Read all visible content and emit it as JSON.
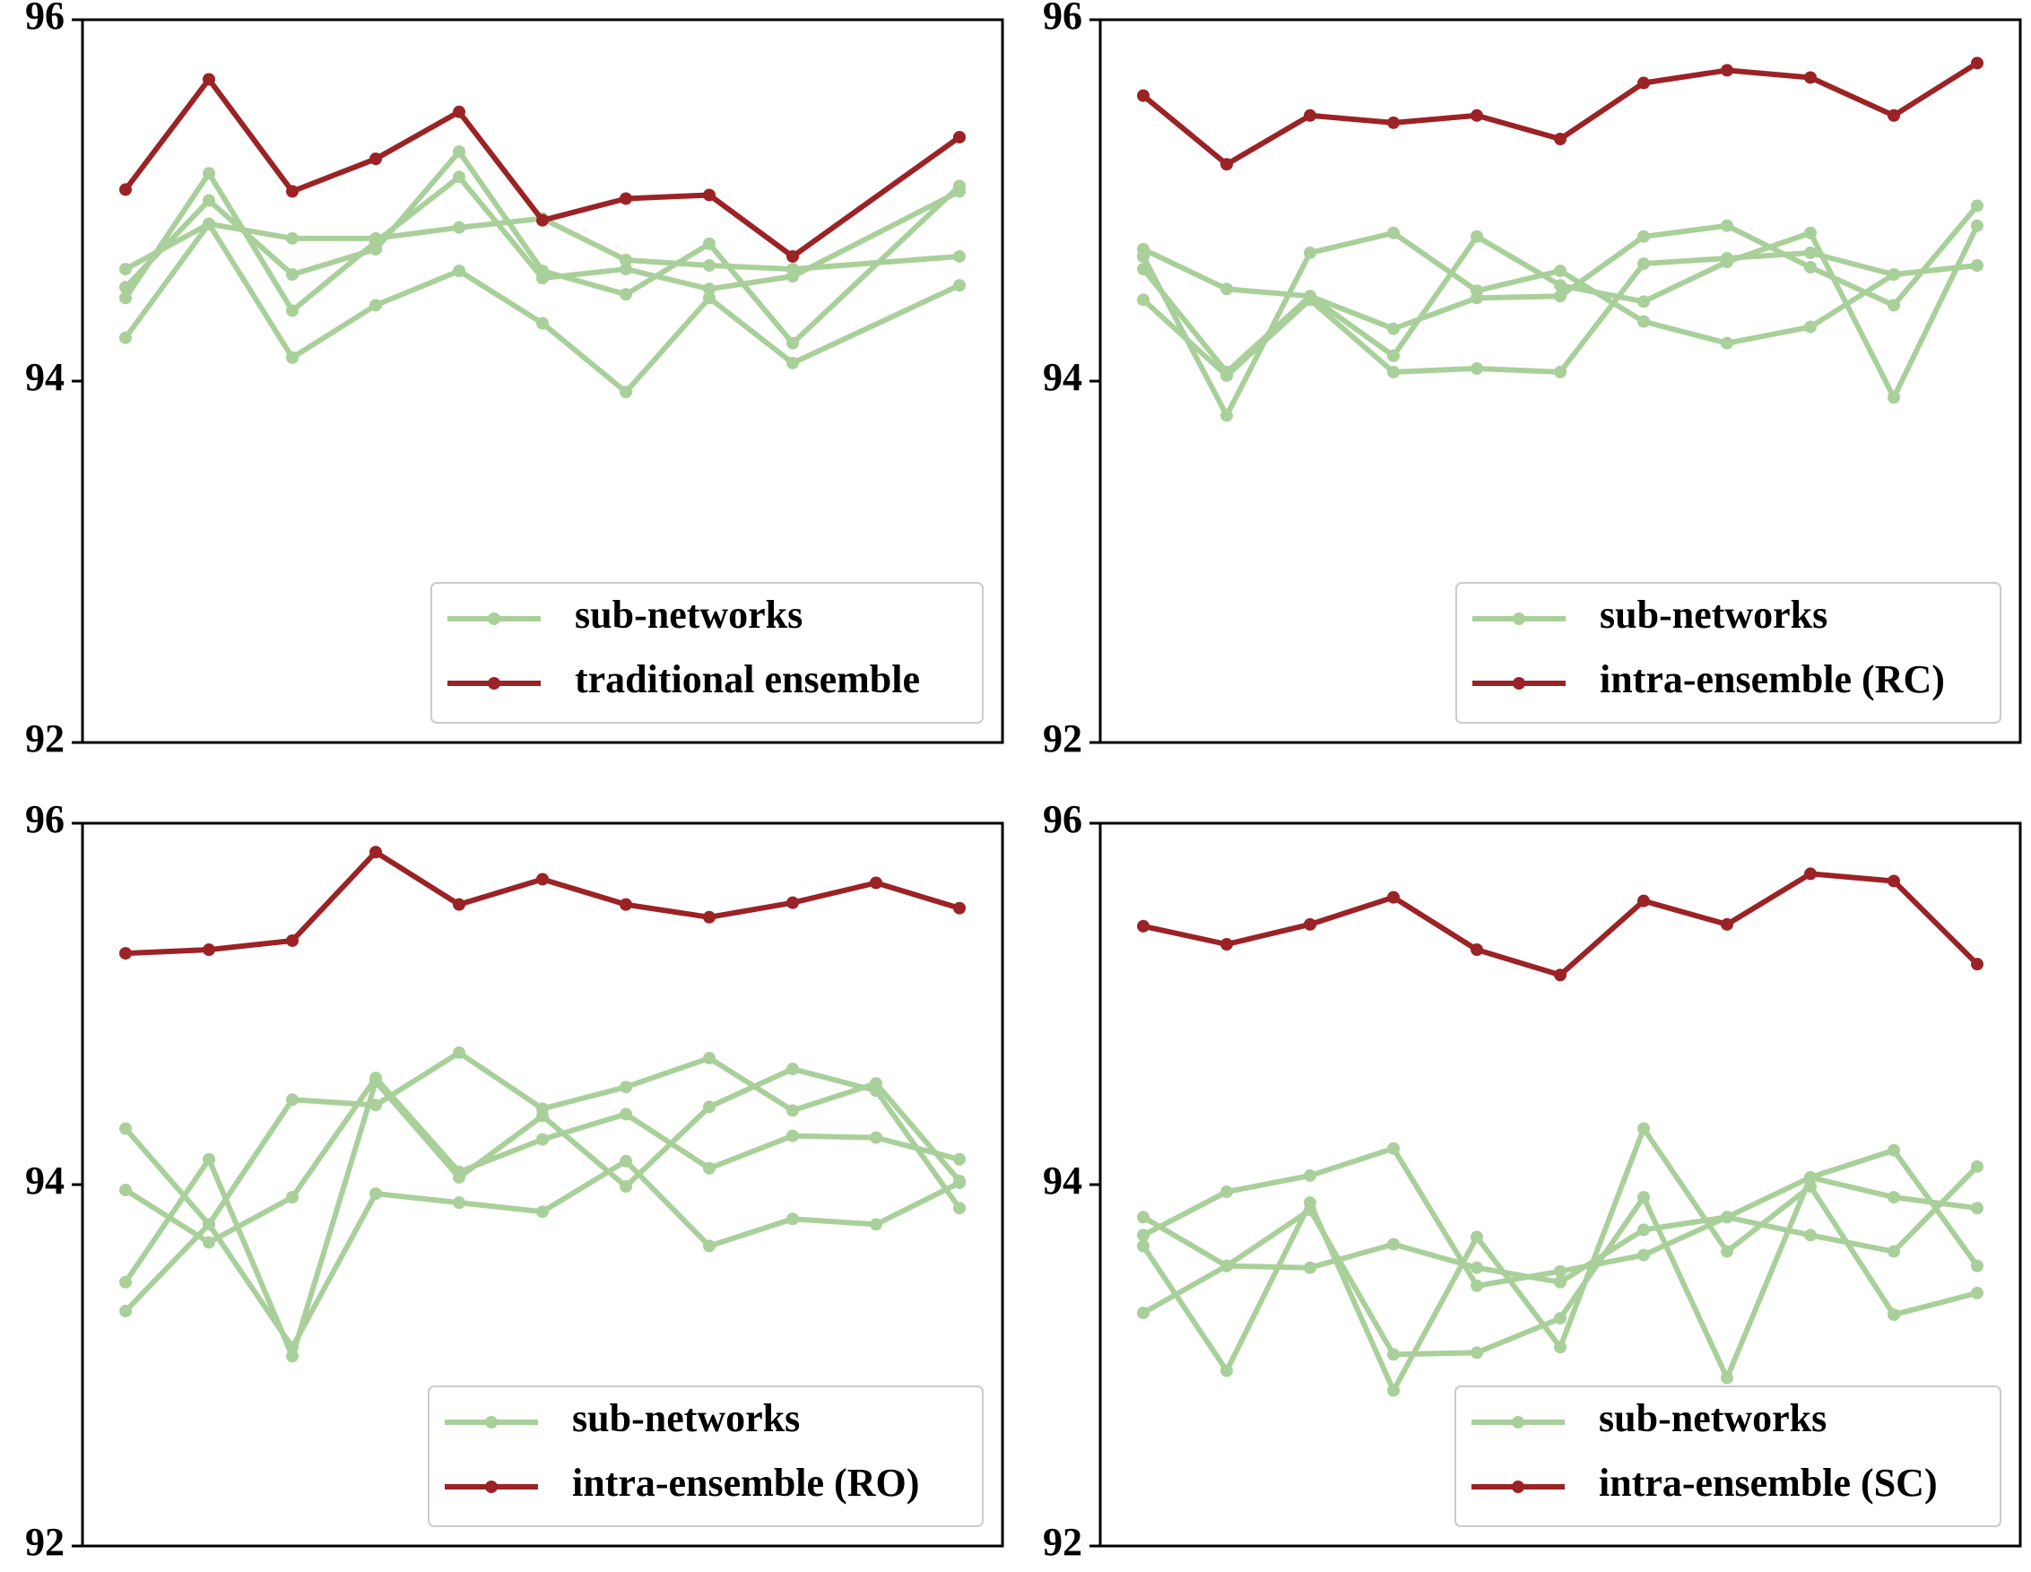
{
  "figure": {
    "colors": {
      "sub": "#a9d09a",
      "ensemble": "#9b2225",
      "axis": "#000000",
      "legend_border": "#cccccc"
    }
  },
  "chart_data": [
    {
      "type": "line",
      "ylim": [
        92,
        96
      ],
      "yticks": [
        92,
        94,
        96
      ],
      "grid": false,
      "legend_placement": "lower-right",
      "x": [
        1,
        2,
        3,
        4,
        5,
        6,
        7,
        8,
        9,
        10,
        11
      ],
      "series": [
        {
          "name": "sub-networks",
          "role": "sub",
          "values": [
            94.62,
            94.87,
            94.79,
            94.79,
            94.85,
            94.9,
            94.67,
            94.64,
            94.62,
            94.69
          ],
          "x": [
            1,
            2,
            3,
            4,
            5,
            6,
            7,
            8,
            9,
            11
          ]
        },
        {
          "role": "sub",
          "values": [
            94.52,
            95.0,
            94.59,
            94.73,
            95.27,
            94.61,
            94.48,
            94.76,
            94.21,
            95.08
          ],
          "x": [
            1,
            2,
            3,
            4,
            5,
            6,
            7,
            8,
            9,
            11
          ]
        },
        {
          "role": "sub",
          "values": [
            94.46,
            95.15,
            94.39,
            94.77,
            95.13,
            94.57,
            94.62,
            94.51,
            94.58,
            95.05
          ],
          "x": [
            1,
            2,
            3,
            4,
            5,
            6,
            7,
            8,
            9,
            11
          ]
        },
        {
          "role": "sub",
          "values": [
            94.24,
            94.87,
            94.13,
            94.42,
            94.61,
            94.32,
            93.94,
            94.46,
            94.1,
            94.53
          ],
          "x": [
            1,
            2,
            3,
            4,
            5,
            6,
            7,
            8,
            9,
            11
          ]
        },
        {
          "name": "traditional ensemble",
          "role": "ensemble",
          "values": [
            95.06,
            95.67,
            95.05,
            95.23,
            95.49,
            94.89,
            95.01,
            95.03,
            94.69,
            95.35
          ],
          "x": [
            1,
            2,
            3,
            4,
            5,
            6,
            7,
            8,
            9,
            11
          ]
        }
      ]
    },
    {
      "type": "line",
      "ylim": [
        92,
        96
      ],
      "yticks": [
        92,
        94,
        96
      ],
      "grid": false,
      "legend_placement": "lower-right",
      "x": [
        1,
        2,
        3,
        4,
        5,
        6,
        7,
        8,
        9,
        10,
        11
      ],
      "series": [
        {
          "name": "sub-networks",
          "role": "sub",
          "values": [
            94.73,
            94.51,
            94.47,
            94.29,
            94.46,
            94.47,
            94.8,
            94.86,
            94.63,
            94.42,
            94.97
          ]
        },
        {
          "role": "sub",
          "values": [
            94.69,
            93.81,
            94.71,
            94.82,
            94.5,
            94.61,
            94.33,
            94.21,
            94.3,
            94.59,
            94.64
          ]
        },
        {
          "role": "sub",
          "values": [
            94.62,
            94.05,
            94.47,
            94.14,
            94.8,
            94.53,
            94.44,
            94.66,
            94.82,
            93.91,
            94.86
          ]
        },
        {
          "role": "sub",
          "values": [
            94.45,
            94.03,
            94.45,
            94.05,
            94.07,
            94.05,
            94.65,
            94.68,
            94.71,
            94.59,
            94.64
          ]
        },
        {
          "name": "intra-ensemble (RC)",
          "role": "ensemble",
          "values": [
            95.58,
            95.2,
            95.47,
            95.43,
            95.47,
            95.34,
            95.65,
            95.72,
            95.68,
            95.47,
            95.76
          ]
        }
      ]
    },
    {
      "type": "line",
      "ylim": [
        92,
        96
      ],
      "yticks": [
        92,
        94,
        96
      ],
      "grid": false,
      "legend_placement": "lower-right",
      "x": [
        1,
        2,
        3,
        4,
        5,
        6,
        7,
        8,
        9,
        10,
        11
      ],
      "series": [
        {
          "name": "sub-networks",
          "role": "sub",
          "values": [
            94.31,
            93.78,
            94.47,
            94.44,
            94.73,
            94.42,
            94.54,
            94.7,
            94.41,
            94.56,
            94.02
          ]
        },
        {
          "role": "sub",
          "values": [
            93.97,
            93.68,
            93.93,
            94.59,
            94.07,
            94.25,
            94.39,
            94.09,
            94.27,
            94.26,
            94.14
          ]
        },
        {
          "role": "sub",
          "values": [
            93.46,
            94.14,
            93.05,
            94.57,
            94.04,
            94.38,
            93.99,
            94.43,
            94.64,
            94.52,
            93.87
          ]
        },
        {
          "role": "sub",
          "values": [
            93.3,
            93.78,
            93.1,
            93.95,
            93.9,
            93.85,
            94.13,
            93.66,
            93.81,
            93.78,
            94.01
          ]
        },
        {
          "name": "intra-ensemble (RO)",
          "role": "ensemble",
          "values": [
            95.28,
            95.3,
            95.35,
            95.84,
            95.55,
            95.69,
            95.55,
            95.48,
            95.56,
            95.67,
            95.53
          ]
        }
      ]
    },
    {
      "type": "line",
      "ylim": [
        92,
        96
      ],
      "yticks": [
        92,
        94,
        96
      ],
      "grid": false,
      "legend_placement": "lower-right",
      "x": [
        1,
        2,
        3,
        4,
        5,
        6,
        7,
        8,
        9,
        10,
        11
      ],
      "series": [
        {
          "name": "sub-networks",
          "role": "sub",
          "values": [
            93.82,
            93.55,
            93.54,
            93.67,
            93.54,
            93.46,
            93.75,
            93.82,
            93.72,
            93.63,
            94.1
          ]
        },
        {
          "role": "sub",
          "values": [
            93.72,
            93.96,
            94.05,
            94.2,
            93.44,
            93.52,
            93.61,
            93.82,
            94.04,
            94.19,
            93.55
          ]
        },
        {
          "role": "sub",
          "values": [
            93.66,
            92.97,
            93.9,
            92.86,
            93.71,
            93.1,
            94.31,
            93.63,
            93.99,
            93.28,
            93.4
          ]
        },
        {
          "role": "sub",
          "values": [
            93.29,
            93.55,
            93.86,
            93.06,
            93.07,
            93.26,
            93.93,
            92.93,
            94.04,
            93.93,
            93.87
          ]
        },
        {
          "name": "intra-ensemble (SC)",
          "role": "ensemble",
          "values": [
            95.43,
            95.33,
            95.44,
            95.59,
            95.3,
            95.16,
            95.57,
            95.44,
            95.72,
            95.68,
            95.22
          ]
        }
      ]
    }
  ]
}
